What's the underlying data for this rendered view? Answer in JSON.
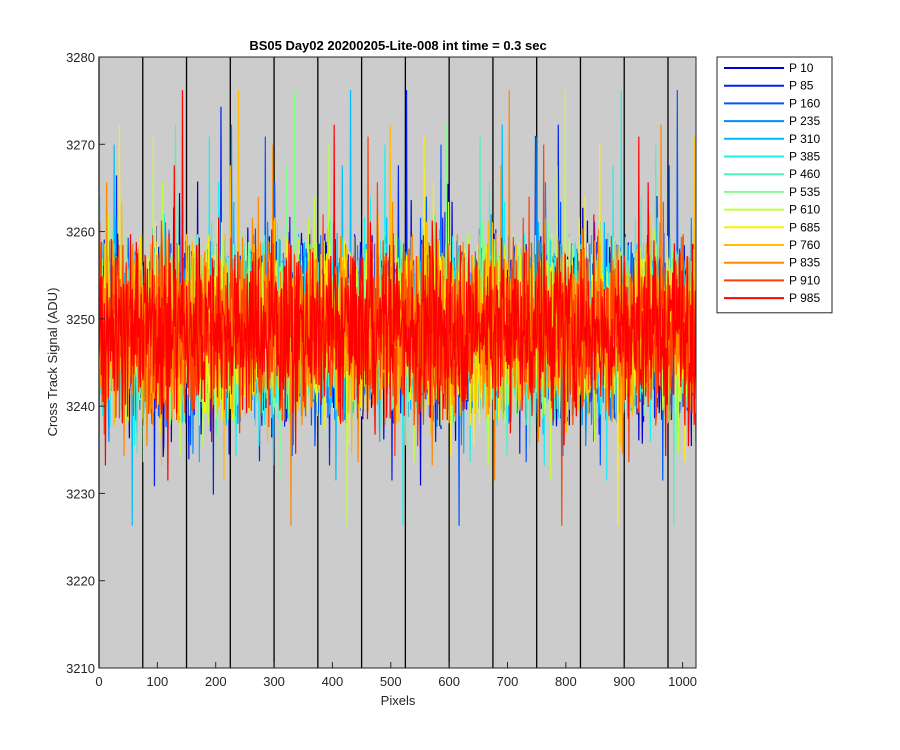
{
  "chart_data": {
    "type": "line",
    "title": "BS05 Day02 20200205-Lite-008 int time = 0.3 sec",
    "xlabel": "Pixels",
    "ylabel": "Cross Track Signal (ADU)",
    "xlim": [
      0,
      1023
    ],
    "ylim": [
      3210,
      3280
    ],
    "xticks": [
      0,
      100,
      200,
      300,
      400,
      500,
      600,
      700,
      800,
      900,
      1000
    ],
    "yticks": [
      3210,
      3220,
      3230,
      3240,
      3250,
      3260,
      3270,
      3280
    ],
    "xtick_labels": [
      "0",
      "100",
      "200",
      "300",
      "400",
      "500",
      "600",
      "700",
      "800",
      "900",
      "1000"
    ],
    "ytick_labels": [
      "3210",
      "3220",
      "3230",
      "3240",
      "3250",
      "3260",
      "3270",
      "3280"
    ],
    "vertical_lines": [
      0,
      75,
      150,
      225,
      300,
      375,
      450,
      525,
      600,
      675,
      750,
      825,
      900,
      975
    ],
    "background": "#cccccc",
    "legend_position": "outside-top-right",
    "mean_signal": 3249,
    "signal_spread": 5,
    "num_points": 1024,
    "series": [
      {
        "name": "P 10",
        "color": "#0000d0"
      },
      {
        "name": "P 85",
        "color": "#0020ee"
      },
      {
        "name": "P 160",
        "color": "#0058ff"
      },
      {
        "name": "P 235",
        "color": "#008cff"
      },
      {
        "name": "P 310",
        "color": "#00bcff"
      },
      {
        "name": "P 385",
        "color": "#20eef0"
      },
      {
        "name": "P 460",
        "color": "#50f0c0"
      },
      {
        "name": "P 535",
        "color": "#80ff88"
      },
      {
        "name": "P 610",
        "color": "#c0ff40"
      },
      {
        "name": "P 685",
        "color": "#fff000"
      },
      {
        "name": "P 760",
        "color": "#ffbc00"
      },
      {
        "name": "P 835",
        "color": "#ff8800"
      },
      {
        "name": "P 910",
        "color": "#ff4000"
      },
      {
        "name": "P 985",
        "color": "#ff0000"
      }
    ]
  }
}
